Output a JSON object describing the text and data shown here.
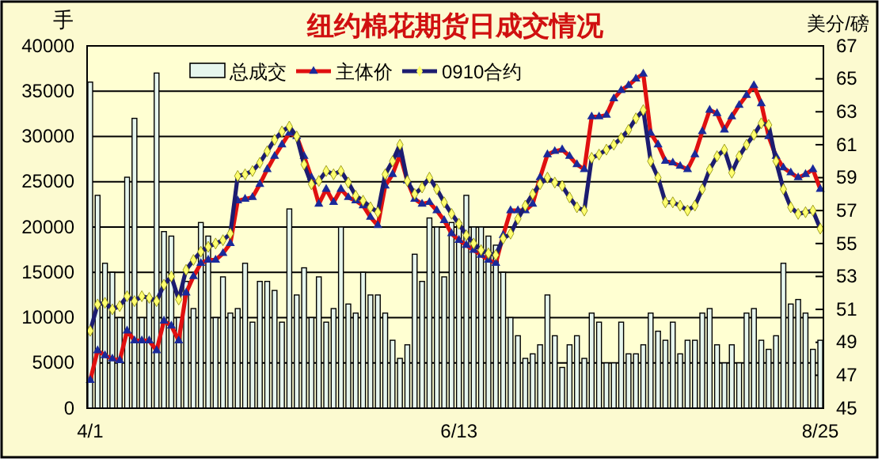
{
  "chart_data": {
    "type": "bar",
    "title": "纽约棉花期货日成交情况",
    "ylabel": "手",
    "y2label": "美分/磅",
    "categories": [
      "4/1",
      null,
      null,
      null,
      null,
      null,
      null,
      null,
      null,
      null,
      null,
      null,
      null,
      null,
      null,
      null,
      null,
      null,
      null,
      null,
      null,
      null,
      null,
      null,
      null,
      null,
      null,
      null,
      null,
      null,
      null,
      null,
      null,
      null,
      null,
      null,
      null,
      null,
      null,
      null,
      null,
      null,
      null,
      null,
      null,
      null,
      null,
      null,
      null,
      null,
      "6/13",
      null,
      null,
      null,
      null,
      null,
      null,
      null,
      null,
      null,
      null,
      null,
      null,
      null,
      null,
      null,
      null,
      null,
      null,
      null,
      null,
      null,
      null,
      null,
      null,
      null,
      null,
      null,
      null,
      null,
      null,
      null,
      null,
      null,
      null,
      null,
      null,
      null,
      null,
      null,
      null,
      null,
      null,
      null,
      null,
      null,
      null,
      null,
      null,
      "8/25"
    ],
    "series": [
      {
        "name": "总成交",
        "color": "#e6f6ee",
        "values": [
          36000,
          23500,
          16000,
          15000,
          10000,
          25500,
          32000,
          10000,
          12000,
          37000,
          19500,
          19000,
          10000,
          14000,
          11000,
          20500,
          19000,
          10000,
          14500,
          10500,
          11000,
          16000,
          9500,
          14000,
          14000,
          13000,
          9500,
          22000,
          12500,
          15500,
          10000,
          14500,
          9500,
          11000,
          20000,
          11500,
          10500,
          15000,
          12500,
          12500,
          10500,
          7500,
          5500,
          7000,
          17000,
          14000,
          21000,
          20000,
          14500,
          20500,
          20500,
          23500,
          20000,
          20000,
          19000,
          18000,
          15000,
          10000,
          8000,
          5500,
          6000,
          7000,
          12500,
          8000,
          4500,
          7000,
          8000,
          5500,
          10500,
          9500,
          5000,
          5000,
          9500,
          6000,
          6000,
          7000,
          10500,
          8500,
          7500,
          9500,
          6000,
          7500,
          7500,
          10500,
          11000,
          7000,
          5000,
          7000,
          5000,
          10500,
          11000,
          7500,
          6500,
          8000,
          16000,
          11500,
          12000,
          10500,
          6500,
          7500
        ]
      },
      {
        "name": "主体价",
        "type": "line",
        "axis": "y2",
        "color": "#e01010",
        "marker": "triangle",
        "values": [
          46.7,
          48.5,
          48.2,
          48,
          47.9,
          49.7,
          49.1,
          49.1,
          49.1,
          48.5,
          50.3,
          50,
          49.1,
          52,
          53,
          53.8,
          54,
          54,
          54.4,
          55,
          57.6,
          57.7,
          57.8,
          58.6,
          59.5,
          60.3,
          61,
          61.7,
          61.5,
          60.3,
          59,
          57.4,
          58.3,
          57.5,
          58.3,
          57.8,
          57.6,
          57.3,
          56.6,
          56.1,
          58.5,
          59.2,
          60.4,
          58.8,
          57.7,
          57.4,
          57.5,
          57,
          56.4,
          55.6,
          55.2,
          54.9,
          54.6,
          54.3,
          54,
          53.8,
          55.5,
          57,
          57,
          57,
          57.4,
          59,
          60.4,
          60.6,
          60.7,
          60.3,
          59.8,
          59.5,
          62.7,
          62.7,
          62.8,
          63.8,
          64.3,
          64.6,
          65,
          65.3,
          61.7,
          61,
          60,
          59.9,
          59.7,
          59.5,
          60.4,
          61.8,
          63.1,
          62.9,
          61.9,
          62.7,
          63.4,
          64,
          64.6,
          63.5,
          61.5,
          60.3,
          59.6,
          59.3,
          59,
          59.2,
          59.5,
          58.3
        ]
      },
      {
        "name": "0910合约",
        "type": "line",
        "axis": "y2",
        "color": "#1c1c70",
        "marker": "diamond",
        "values": [
          49.7,
          51.3,
          51.4,
          51,
          51.2,
          51.8,
          51.5,
          51.8,
          51.7,
          51.5,
          52.5,
          53,
          51.6,
          53.4,
          54,
          54.5,
          54.8,
          55,
          55.2,
          55.6,
          59.1,
          59.2,
          59.4,
          59.9,
          60.6,
          61.3,
          61.8,
          62.1,
          61.5,
          59.8,
          58.6,
          58.8,
          59.4,
          59.2,
          59.4,
          58.7,
          57.9,
          57.6,
          57.2,
          56.9,
          59.2,
          60,
          61,
          58.8,
          58,
          58.4,
          59,
          58.3,
          57.5,
          56.8,
          56.2,
          55.5,
          55,
          54.6,
          54.4,
          54.3,
          55.3,
          55.6,
          56.5,
          57.3,
          58,
          58.6,
          59,
          58.7,
          58.5,
          57.8,
          57.2,
          57,
          60.2,
          60.4,
          60.7,
          61,
          61.4,
          61.9,
          62.6,
          63.1,
          60,
          59,
          57.5,
          57.5,
          57.3,
          57,
          57.3,
          58.3,
          59.5,
          60.3,
          60.7,
          59.3,
          60.3,
          61,
          61.6,
          62.3,
          62.2,
          60,
          58.3,
          57.2,
          56.8,
          56.9,
          57,
          55.9
        ]
      }
    ],
    "ylim": [
      0,
      40000
    ],
    "yticks": [
      0,
      5000,
      10000,
      15000,
      20000,
      25000,
      30000,
      35000,
      40000
    ],
    "y2lim": [
      45,
      67
    ],
    "y2ticks": [
      45,
      47,
      49,
      51,
      53,
      55,
      57,
      59,
      61,
      63,
      65,
      67
    ],
    "grid": "y",
    "legend": "top"
  }
}
